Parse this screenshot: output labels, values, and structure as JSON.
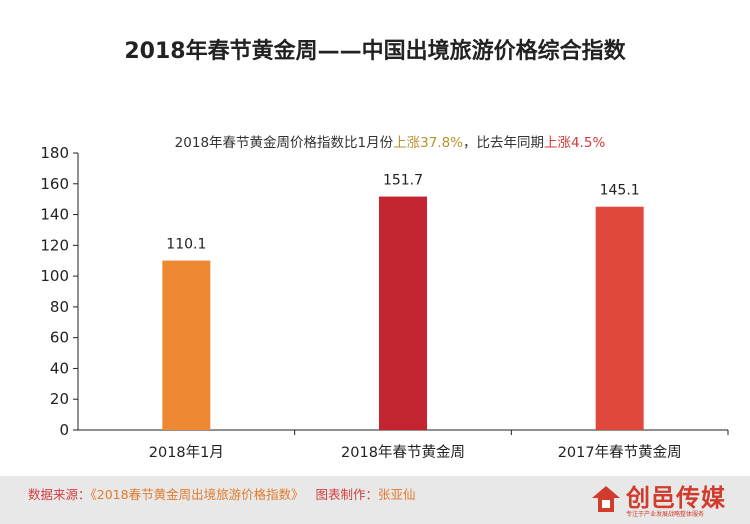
{
  "title": "2018年春节黄金周——中国出境旅游价格综合指数",
  "subtitle": {
    "prefix": "2018年春节黄金周价格指数比1月份",
    "rise_a": "上涨37.8%",
    "middle": "，比去年同期",
    "rise_b": "上涨4.5%"
  },
  "chart_data": {
    "type": "bar",
    "categories": [
      "2018年1月",
      "2018年春节黄金周",
      "2017年春节黄金周"
    ],
    "values": [
      110.1,
      151.7,
      145.1
    ],
    "value_labels": [
      "110.1",
      "151.7",
      "145.1"
    ],
    "bar_colors": [
      "#ee8833",
      "#c42430",
      "#e0473d"
    ],
    "ylim": [
      0,
      180
    ],
    "yticks": [
      0,
      20,
      40,
      60,
      80,
      100,
      120,
      140,
      160,
      180
    ],
    "grid": false,
    "xlabel": "",
    "ylabel": ""
  },
  "footer": {
    "source_label": "数据来源：",
    "source_text": "《2018春节黄金周出境旅游价格指数》",
    "maker_label": "图表制作：",
    "maker_text": "张亚仙"
  },
  "brand": {
    "name": "创邑传媒",
    "tagline": "专注于产业发展战略整体服务"
  },
  "colors": {
    "axis": "#222222",
    "text": "#222222",
    "accent_gold": "#b8922f",
    "accent_red": "#d33a3a",
    "footer_bg": "#e8e8e8"
  }
}
